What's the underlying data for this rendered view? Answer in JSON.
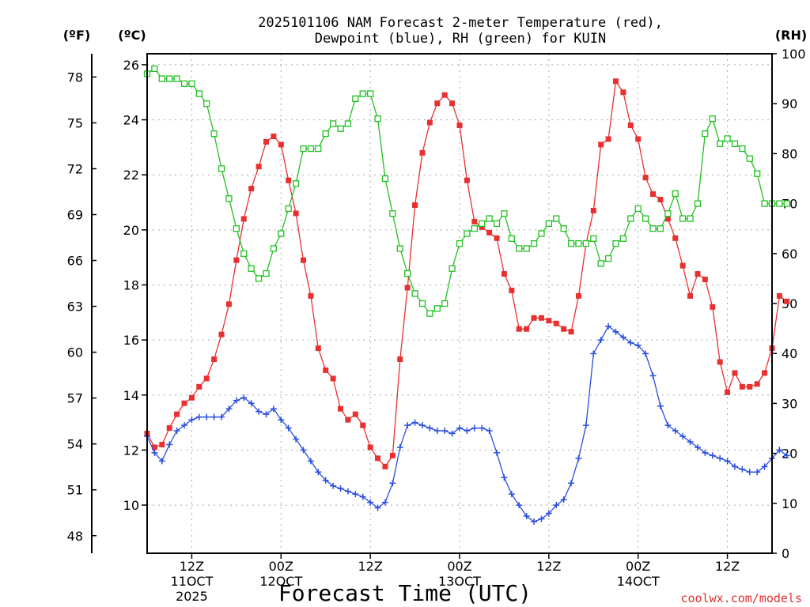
{
  "chart_data": {
    "type": "line",
    "title": "2025101106 NAM Forecast 2-meter Temperature (red),",
    "subtitle": "Dewpoint (blue), RH (green) for KUIN",
    "xlabel": "Forecast Time (UTC)",
    "credit": "coolwx.com/models",
    "unit_left_f": "(ºF)",
    "unit_left_c": "(ºC)",
    "unit_right": "(RH)",
    "grid": true,
    "x_hours_range": [
      0,
      84
    ],
    "x_ticks": [
      {
        "h": 6,
        "lines": [
          "12Z",
          "11OCT",
          "2025"
        ]
      },
      {
        "h": 18,
        "lines": [
          "00Z",
          "12OCT"
        ]
      },
      {
        "h": 30,
        "lines": [
          "12Z"
        ]
      },
      {
        "h": 42,
        "lines": [
          "00Z",
          "13OCT"
        ]
      },
      {
        "h": 54,
        "lines": [
          "12Z"
        ]
      },
      {
        "h": 66,
        "lines": [
          "00Z",
          "14OCT"
        ]
      },
      {
        "h": 78,
        "lines": [
          "12Z"
        ]
      }
    ],
    "ylim_c": [
      8.25,
      26.4
    ],
    "y_ticks_c": [
      10,
      12,
      14,
      16,
      18,
      20,
      22,
      24,
      26
    ],
    "y_ticks_f": [
      48,
      51,
      54,
      57,
      60,
      63,
      66,
      69,
      72,
      75,
      78
    ],
    "ylim_rh": [
      0,
      100
    ],
    "y_ticks_rh": [
      0,
      10,
      20,
      30,
      40,
      50,
      60,
      70,
      80,
      90,
      100
    ],
    "series": [
      {
        "name": "Temperature",
        "color": "#e83030",
        "marker": "filled-square",
        "axis": "c",
        "values": [
          12.6,
          12.1,
          12.2,
          12.8,
          13.3,
          13.7,
          13.9,
          14.3,
          14.6,
          15.3,
          16.2,
          17.3,
          18.9,
          20.4,
          21.5,
          22.3,
          23.2,
          23.4,
          23.1,
          21.8,
          20.6,
          18.9,
          17.6,
          15.7,
          14.9,
          14.6,
          13.5,
          13.1,
          13.3,
          12.9,
          12.1,
          11.7,
          11.4,
          11.8,
          15.3,
          17.9,
          20.9,
          22.8,
          23.9,
          24.6,
          24.9,
          24.6,
          23.8,
          21.8,
          20.3,
          20.1,
          19.9,
          19.7,
          18.4,
          17.8,
          16.4,
          16.4,
          16.8,
          16.8,
          16.7,
          16.6,
          16.4,
          16.3,
          17.6,
          19.5,
          20.7,
          23.1,
          23.3,
          25.4,
          25.0,
          23.8,
          23.3,
          21.9,
          21.3,
          21.1,
          20.4,
          19.7,
          18.7,
          17.6,
          18.4,
          18.2,
          17.2,
          15.2,
          14.1,
          14.8,
          14.3,
          14.3,
          14.4,
          14.8,
          15.7,
          17.6,
          17.4
        ]
      },
      {
        "name": "Dewpoint",
        "color": "#2a4ee0",
        "marker": "plus",
        "axis": "c",
        "values": [
          12.5,
          11.9,
          11.6,
          12.2,
          12.7,
          12.9,
          13.1,
          13.2,
          13.2,
          13.2,
          13.2,
          13.5,
          13.8,
          13.9,
          13.7,
          13.4,
          13.3,
          13.5,
          13.1,
          12.8,
          12.4,
          12.0,
          11.6,
          11.2,
          10.9,
          10.7,
          10.6,
          10.5,
          10.4,
          10.3,
          10.1,
          9.9,
          10.1,
          10.8,
          12.1,
          12.9,
          13.0,
          12.9,
          12.8,
          12.7,
          12.7,
          12.6,
          12.8,
          12.7,
          12.8,
          12.8,
          12.7,
          11.9,
          11.0,
          10.4,
          10.0,
          9.6,
          9.4,
          9.5,
          9.7,
          10.0,
          10.2,
          10.8,
          11.7,
          12.9,
          15.5,
          16.0,
          16.5,
          16.3,
          16.1,
          15.9,
          15.8,
          15.5,
          14.7,
          13.6,
          12.9,
          12.7,
          12.5,
          12.3,
          12.1,
          11.9,
          11.8,
          11.7,
          11.6,
          11.4,
          11.3,
          11.2,
          11.2,
          11.4,
          11.7,
          12.0,
          11.8
        ]
      },
      {
        "name": "RH",
        "color": "#22c022",
        "marker": "open-square",
        "axis": "rh",
        "values": [
          96,
          97,
          95,
          95,
          95,
          94,
          94,
          92,
          90,
          84,
          77,
          71,
          65,
          60,
          57,
          55,
          56,
          61,
          64,
          69,
          74,
          81,
          81,
          81,
          84,
          86,
          85,
          86,
          91,
          92,
          92,
          87,
          75,
          68,
          61,
          56,
          52,
          50,
          48,
          49,
          50,
          57,
          62,
          64,
          65,
          66,
          67,
          66,
          68,
          63,
          61,
          61,
          62,
          64,
          66,
          67,
          65,
          62,
          62,
          62,
          63,
          58,
          59,
          62,
          63,
          67,
          69,
          67,
          65,
          65,
          68,
          72,
          67,
          67,
          70,
          84,
          87,
          82,
          83,
          82,
          81,
          79,
          76,
          70,
          70,
          70,
          70
        ]
      }
    ]
  }
}
